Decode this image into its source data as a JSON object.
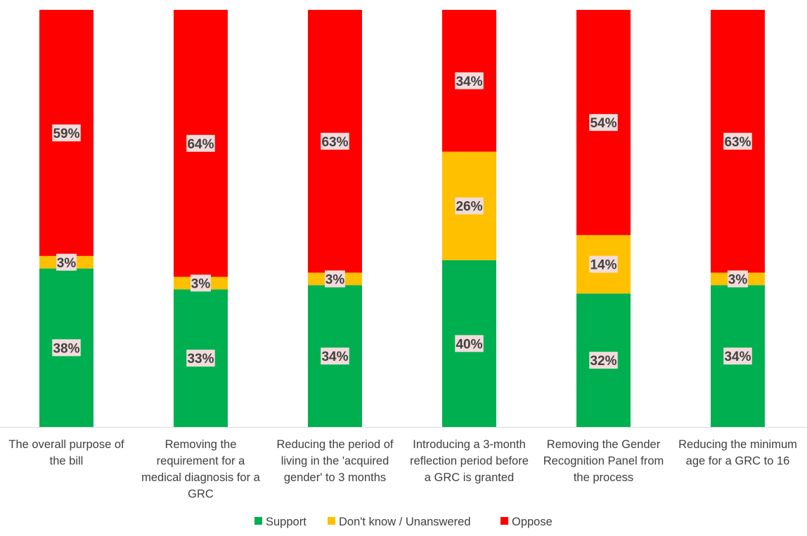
{
  "chart_data": {
    "type": "bar",
    "stacked": true,
    "normalized": true,
    "categories": [
      "The overall purpose of the bill",
      "Removing the requirement for a medical diagnosis for a GRC",
      "Reducing the period of living in the 'acquired gender' to 3 months",
      "Introducing a 3-month reflection period before a GRC is granted",
      "Removing the Gender Recognition Panel from the process",
      "Reducing the minimum age for a GRC to 16"
    ],
    "category_label_lines": [
      [
        "The overall purpose of",
        "the bill"
      ],
      [
        "Removing the",
        "requirement for a",
        "medical diagnosis for a",
        "GRC"
      ],
      [
        "Reducing the period of",
        "living in the 'acquired",
        "gender' to 3 months"
      ],
      [
        "Introducing a 3-month",
        "reflection period before",
        "a GRC is granted"
      ],
      [
        "Removing the Gender",
        "Recognition Panel from",
        "the process"
      ],
      [
        "Reducing the minimum",
        "age for a GRC to 16"
      ]
    ],
    "series": [
      {
        "name": "Support",
        "color": "#00b050",
        "values": [
          38,
          33,
          34,
          40,
          32,
          34
        ]
      },
      {
        "name": "Don't know / Unanswered",
        "color": "#ffc000",
        "values": [
          3,
          3,
          3,
          26,
          14,
          3
        ]
      },
      {
        "name": "Oppose",
        "color": "#ff0000",
        "values": [
          59,
          64,
          63,
          34,
          54,
          63
        ]
      }
    ],
    "ylim": [
      0,
      100
    ],
    "value_suffix": "%",
    "data_label_box_color": "#f2dcdb",
    "grid": false,
    "legend_position": "bottom",
    "title": "",
    "xlabel": "",
    "ylabel": ""
  }
}
